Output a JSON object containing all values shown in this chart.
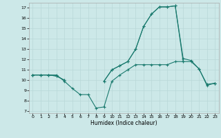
{
  "xlabel": "Humidex (Indice chaleur)",
  "x_values": [
    0,
    1,
    2,
    3,
    4,
    5,
    6,
    7,
    8,
    9,
    10,
    11,
    12,
    13,
    14,
    15,
    16,
    17,
    18,
    19,
    20,
    21,
    22,
    23
  ],
  "line1": [
    10.5,
    10.5,
    10.5,
    10.5,
    9.9,
    9.2,
    8.6,
    8.6,
    7.3,
    7.4,
    9.9,
    10.5,
    11.0,
    11.5,
    11.5,
    11.5,
    11.5,
    11.5,
    11.8,
    11.8,
    null,
    null,
    null,
    null
  ],
  "line2": [
    10.5,
    10.5,
    10.5,
    10.4,
    10.0,
    null,
    null,
    null,
    null,
    9.9,
    11.0,
    11.4,
    11.8,
    13.0,
    15.2,
    16.4,
    17.1,
    17.1,
    17.2,
    11.8,
    11.8,
    11.1,
    9.6,
    9.7
  ],
  "line3": [
    10.5,
    10.5,
    10.5,
    10.4,
    10.0,
    null,
    null,
    null,
    null,
    9.9,
    11.0,
    11.4,
    11.8,
    13.0,
    15.2,
    16.4,
    17.1,
    17.1,
    17.2,
    12.1,
    11.9,
    11.1,
    9.5,
    9.7
  ],
  "line4": [
    10.5,
    null,
    null,
    null,
    null,
    null,
    null,
    null,
    null,
    null,
    null,
    null,
    null,
    null,
    null,
    null,
    null,
    null,
    null,
    null,
    null,
    null,
    null,
    9.7
  ],
  "bg_color": "#cce8e8",
  "grid_color": "#b8d8d8",
  "line_color": "#1a7a6e",
  "ylim_min": 6.8,
  "ylim_max": 17.5,
  "xlim_min": -0.5,
  "xlim_max": 23.5,
  "yticks": [
    7,
    8,
    9,
    10,
    11,
    12,
    13,
    14,
    15,
    16,
    17
  ],
  "xticks": [
    0,
    1,
    2,
    3,
    4,
    5,
    6,
    7,
    8,
    9,
    10,
    11,
    12,
    13,
    14,
    15,
    16,
    17,
    18,
    19,
    20,
    21,
    22,
    23
  ]
}
